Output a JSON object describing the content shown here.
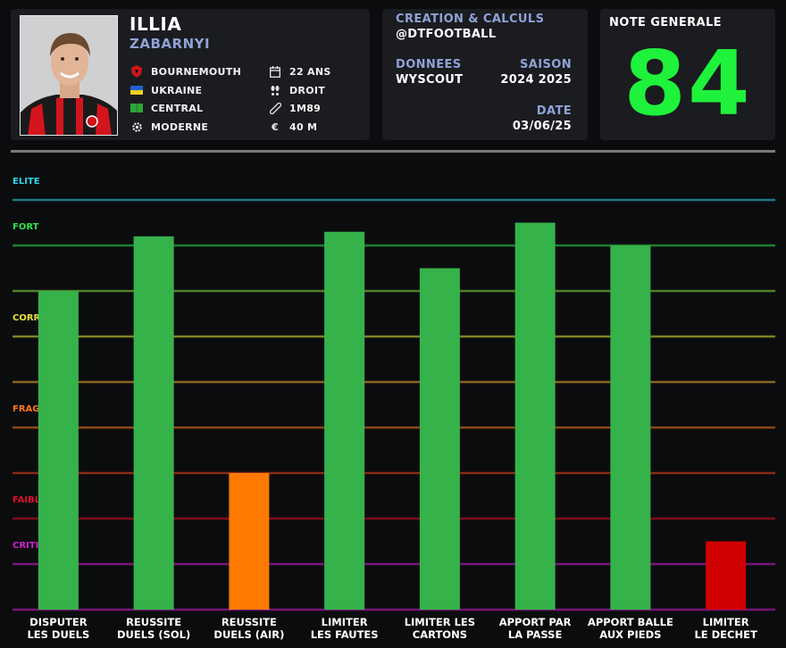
{
  "player": {
    "first_name": "ILLIA",
    "last_name": "ZABARNYI",
    "club": "BOURNEMOUTH",
    "nationality": "UKRAINE",
    "position": "CENTRAL",
    "style": "MODERNE",
    "age": "22 ANS",
    "foot": "DROIT",
    "height": "1M89",
    "value": "40 M"
  },
  "credits": {
    "title": "CREATION & CALCULS",
    "handle": "@DTFOOTBALL",
    "donnees_label": "DONNEES",
    "donnees_value": "WYSCOUT",
    "saison_label": "SAISON",
    "saison_value": "2024 2025",
    "date_label": "DATE",
    "date_value": "03/06/25"
  },
  "score": {
    "label": "NOTE GENERALE",
    "value": "84"
  },
  "icons": {
    "club": "club-crest-icon",
    "nationality": "ukraine-flag-icon",
    "position": "pitch-icon",
    "style": "gear-icon",
    "age": "calendar-icon",
    "foot": "footprints-icon",
    "height": "ruler-icon",
    "value": "euro-icon"
  },
  "colors": {
    "accent_blue": "#8fa2d6",
    "score_green": "#1ff23a",
    "bar_green": "#36b24a",
    "bar_orange": "#ff7a00",
    "bar_red": "#d10000"
  },
  "chart_data": {
    "type": "bar",
    "title": "",
    "xlabel": "",
    "ylabel": "",
    "ylim": [
      0,
      100
    ],
    "levels": [
      {
        "label": "ELITE",
        "value": 90,
        "color": "#2fd6e6"
      },
      {
        "label": "FORT",
        "value": 80,
        "color": "#2ee24a"
      },
      {
        "label": "CORRECT",
        "value": 60,
        "color": "#e6e23a"
      },
      {
        "label": "FRAGILE",
        "value": 40,
        "color": "#ff7a1a"
      },
      {
        "label": "FAIBLE",
        "value": 20,
        "color": "#e0102a"
      },
      {
        "label": "CRITIQUE",
        "value": 10,
        "color": "#d020d0"
      }
    ],
    "categories": [
      [
        "DISPUTER",
        "LES DUELS"
      ],
      [
        "REUSSITE",
        "DUELS (SOL)"
      ],
      [
        "REUSSITE",
        "DUELS (AIR)"
      ],
      [
        "LIMITER",
        "LES FAUTES"
      ],
      [
        "LIMITER LES",
        "CARTONS"
      ],
      [
        "APPORT PAR",
        "LA PASSE"
      ],
      [
        "APPORT BALLE",
        "AUX PIEDS"
      ],
      [
        "LIMITER",
        "LE DECHET"
      ]
    ],
    "values": [
      70,
      82,
      30,
      83,
      75,
      85,
      80,
      15
    ],
    "bar_colors": [
      "#36b24a",
      "#36b24a",
      "#ff7a00",
      "#36b24a",
      "#36b24a",
      "#36b24a",
      "#36b24a",
      "#d10000"
    ]
  }
}
